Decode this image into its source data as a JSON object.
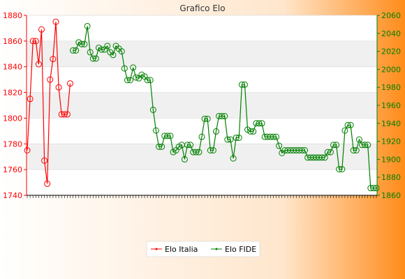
{
  "chart_data": {
    "type": "line",
    "title": "Grafico Elo",
    "xlabel": "",
    "ylabel_left": "",
    "ylabel_right": "",
    "y_left": {
      "min": 1740,
      "max": 1880,
      "ticks": [
        1740,
        1760,
        1780,
        1800,
        1820,
        1840,
        1860,
        1880
      ],
      "color": "#ff0000"
    },
    "y_right": {
      "min": 1860,
      "max": 2060,
      "ticks": [
        1860,
        1880,
        1900,
        1920,
        1940,
        1960,
        1980,
        2000,
        2020,
        2040,
        2060
      ],
      "color": "#008000"
    },
    "grid": true,
    "legend": "bottom-center",
    "series": [
      {
        "name": "Elo Italia",
        "axis": "left",
        "color": "#ff0000",
        "points": [
          [
            0,
            1775
          ],
          [
            1,
            1815
          ],
          [
            2,
            1860
          ],
          [
            3,
            1860
          ],
          [
            4,
            1842
          ],
          [
            5,
            1869
          ],
          [
            6,
            1767
          ],
          [
            7,
            1749
          ],
          [
            8,
            1830
          ],
          [
            9,
            1846
          ],
          [
            10,
            1875
          ],
          [
            11,
            1824
          ],
          [
            12,
            1803
          ],
          [
            13,
            1803
          ],
          [
            14,
            1803
          ],
          [
            15,
            1827
          ]
        ]
      },
      {
        "name": "Elo FIDE",
        "axis": "right",
        "color": "#008000",
        "points": [
          [
            16,
            2021
          ],
          [
            17,
            2021
          ],
          [
            18,
            2030
          ],
          [
            19,
            2028
          ],
          [
            20,
            2028
          ],
          [
            21,
            2048
          ],
          [
            22,
            2019
          ],
          [
            23,
            2012
          ],
          [
            24,
            2012
          ],
          [
            25,
            2024
          ],
          [
            26,
            2022
          ],
          [
            27,
            2022
          ],
          [
            28,
            2026
          ],
          [
            29,
            2019
          ],
          [
            30,
            2016
          ],
          [
            31,
            2026
          ],
          [
            32,
            2023
          ],
          [
            33,
            2020
          ],
          [
            34,
            2001
          ],
          [
            35,
            1988
          ],
          [
            36,
            1988
          ],
          [
            37,
            2002
          ],
          [
            38,
            1991
          ],
          [
            39,
            1990
          ],
          [
            40,
            1994
          ],
          [
            41,
            1992
          ],
          [
            42,
            1988
          ],
          [
            43,
            1988
          ],
          [
            44,
            1955
          ],
          [
            45,
            1932
          ],
          [
            46,
            1914
          ],
          [
            47,
            1914
          ],
          [
            48,
            1926
          ],
          [
            49,
            1926
          ],
          [
            50,
            1926
          ],
          [
            51,
            1908
          ],
          [
            52,
            1910
          ],
          [
            53,
            1914
          ],
          [
            54,
            1916
          ],
          [
            55,
            1900
          ],
          [
            56,
            1916
          ],
          [
            57,
            1916
          ],
          [
            58,
            1908
          ],
          [
            59,
            1908
          ],
          [
            60,
            1908
          ],
          [
            61,
            1925
          ],
          [
            62,
            1945
          ],
          [
            63,
            1945
          ],
          [
            64,
            1910
          ],
          [
            65,
            1910
          ],
          [
            66,
            1931
          ],
          [
            67,
            1948
          ],
          [
            68,
            1948
          ],
          [
            69,
            1948
          ],
          [
            70,
            1922
          ],
          [
            71,
            1922
          ],
          [
            72,
            1901
          ],
          [
            73,
            1924
          ],
          [
            74,
            1924
          ],
          [
            75,
            1983
          ],
          [
            76,
            1983
          ],
          [
            77,
            1933
          ],
          [
            78,
            1931
          ],
          [
            79,
            1931
          ],
          [
            80,
            1940
          ],
          [
            81,
            1940
          ],
          [
            82,
            1940
          ],
          [
            83,
            1925
          ],
          [
            84,
            1925
          ],
          [
            85,
            1925
          ],
          [
            86,
            1925
          ],
          [
            87,
            1925
          ],
          [
            88,
            1915
          ],
          [
            89,
            1907
          ],
          [
            90,
            1910
          ],
          [
            91,
            1910
          ],
          [
            92,
            1910
          ],
          [
            93,
            1910
          ],
          [
            94,
            1910
          ],
          [
            95,
            1910
          ],
          [
            96,
            1910
          ],
          [
            97,
            1910
          ],
          [
            98,
            1902
          ],
          [
            99,
            1902
          ],
          [
            100,
            1902
          ],
          [
            101,
            1902
          ],
          [
            102,
            1902
          ],
          [
            103,
            1902
          ],
          [
            104,
            1902
          ],
          [
            105,
            1908
          ],
          [
            106,
            1908
          ],
          [
            107,
            1916
          ],
          [
            108,
            1916
          ],
          [
            109,
            1889
          ],
          [
            110,
            1889
          ],
          [
            111,
            1932
          ],
          [
            112,
            1938
          ],
          [
            113,
            1938
          ],
          [
            114,
            1910
          ],
          [
            115,
            1910
          ],
          [
            116,
            1922
          ],
          [
            117,
            1916
          ],
          [
            118,
            1916
          ],
          [
            119,
            1916
          ],
          [
            120,
            1868
          ],
          [
            121,
            1868
          ],
          [
            122,
            1868
          ]
        ]
      }
    ]
  },
  "legend": {
    "items": [
      {
        "label": "Elo Italia",
        "color": "#ff0000"
      },
      {
        "label": "Elo FIDE",
        "color": "#008000"
      }
    ]
  },
  "colors": {
    "frame_gradient_left": "#ffffff",
    "frame_gradient_right": "#ff8c1a",
    "plot_bg": "#ffffff",
    "plot_band": "#f0f0f0"
  }
}
